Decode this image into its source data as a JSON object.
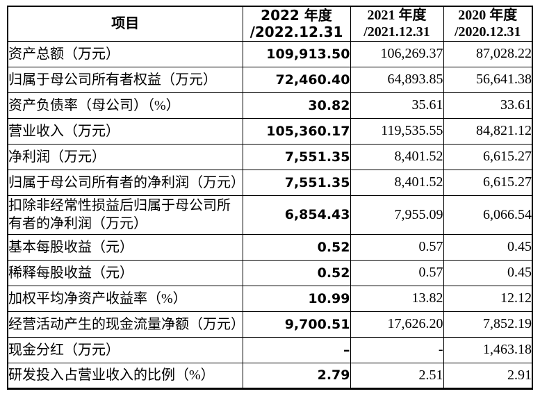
{
  "table": {
    "header": {
      "item": "项目",
      "y2022": {
        "line1": "2022 年度",
        "line2": "/2022.12.31"
      },
      "y2021": {
        "line1": "2021 年度",
        "line2": "/2021.12.31"
      },
      "y2020": {
        "line1": "2020 年度",
        "line2": "/2020.12.31"
      }
    },
    "rows": [
      {
        "label": "资产总额（万元）",
        "v2022": "109,913.50",
        "v2021": "106,269.37",
        "v2020": "87,028.22"
      },
      {
        "label": "归属于母公司所有者权益（万元）",
        "v2022": "72,460.40",
        "v2021": "64,893.85",
        "v2020": "56,641.38"
      },
      {
        "label": "资产负债率（母公司）（%）",
        "v2022": "30.82",
        "v2021": "35.61",
        "v2020": "33.61"
      },
      {
        "label": "营业收入（万元）",
        "v2022": "105,360.17",
        "v2021": "119,535.55",
        "v2020": "84,821.12"
      },
      {
        "label": "净利润（万元）",
        "v2022": "7,551.35",
        "v2021": "8,401.52",
        "v2020": "6,615.27"
      },
      {
        "label": "归属于母公司所有者的净利润（万元）",
        "v2022": "7,551.35",
        "v2021": "8,401.52",
        "v2020": "6,615.27"
      },
      {
        "label": "扣除非经常性损益后归属于母公司所有者的净利润（万元）",
        "v2022": "6,854.43",
        "v2021": "7,955.09",
        "v2020": "6,066.54"
      },
      {
        "label": "基本每股收益（元）",
        "v2022": "0.52",
        "v2021": "0.57",
        "v2020": "0.45"
      },
      {
        "label": "稀释每股收益（元）",
        "v2022": "0.52",
        "v2021": "0.57",
        "v2020": "0.45"
      },
      {
        "label": "加权平均净资产收益率（%）",
        "v2022": "10.99",
        "v2021": "13.82",
        "v2020": "12.12"
      },
      {
        "label": "经营活动产生的现金流量净额（万元）",
        "v2022": "9,700.51",
        "v2021": "17,626.20",
        "v2020": "7,852.19"
      },
      {
        "label": "现金分红（万元）",
        "v2022": "–",
        "v2021": "-",
        "v2020": "1,463.18"
      },
      {
        "label": "研发投入占营业收入的比例（%）",
        "v2022": "2.79",
        "v2021": "2.51",
        "v2020": "2.91"
      }
    ]
  }
}
